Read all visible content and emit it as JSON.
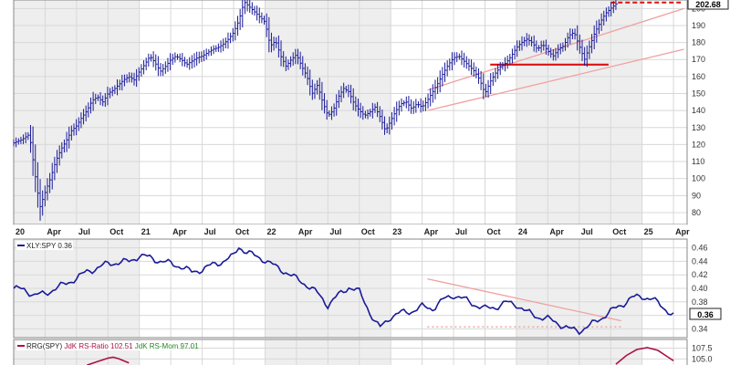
{
  "colors": {
    "price": "#1a1a99",
    "ratio": "#1a1a99",
    "trend": "#f0a0a0",
    "support": "#dd1111",
    "rrg_ratio": "#aa1144",
    "rrg_mom": "#228822",
    "band_shade": "#eeeeee",
    "grid": "#d8d8d8"
  },
  "chart_data": [
    {
      "type": "line",
      "panel": "price",
      "style": "ohlc-bars",
      "ylim": [
        73,
        205
      ],
      "yticks": [
        80,
        90,
        100,
        110,
        120,
        130,
        140,
        150,
        160,
        170,
        180,
        190,
        200
      ],
      "last_value_label": "202.68",
      "x_tick_labels": [
        "20",
        "Apr",
        "Jul",
        "Oct",
        "21",
        "Apr",
        "Jul",
        "Oct",
        "22",
        "Apr",
        "Jul",
        "Oct",
        "23",
        "Apr",
        "Jul",
        "Oct",
        "24",
        "Apr",
        "Jul",
        "Oct",
        "25",
        "Apr"
      ],
      "x_tick_months": [
        0,
        3,
        6,
        9,
        12,
        15,
        18,
        21,
        24,
        27,
        30,
        33,
        36,
        39,
        42,
        45,
        48,
        51,
        54,
        57,
        60,
        63
      ],
      "xlim_months": [
        0,
        64.3
      ],
      "series_points": [
        [
          0,
          121
        ],
        [
          0.8,
          123
        ],
        [
          1.5,
          126
        ],
        [
          2,
          104
        ],
        [
          2.5,
          83
        ],
        [
          3,
          92
        ],
        [
          3.5,
          100
        ],
        [
          4,
          110
        ],
        [
          4.5,
          117
        ],
        [
          5,
          122
        ],
        [
          5.5,
          128
        ],
        [
          6,
          131
        ],
        [
          6.5,
          136
        ],
        [
          7,
          140
        ],
        [
          7.5,
          146
        ],
        [
          8,
          148
        ],
        [
          8.5,
          145
        ],
        [
          9,
          150
        ],
        [
          9.5,
          152
        ],
        [
          10,
          155
        ],
        [
          10.5,
          158
        ],
        [
          11,
          160
        ],
        [
          11.5,
          158
        ],
        [
          12,
          163
        ],
        [
          12.5,
          167
        ],
        [
          13,
          172
        ],
        [
          13.5,
          168
        ],
        [
          14,
          163
        ],
        [
          14.5,
          166
        ],
        [
          15,
          170
        ],
        [
          15.5,
          172
        ],
        [
          16,
          170
        ],
        [
          16.5,
          167
        ],
        [
          17,
          169
        ],
        [
          17.5,
          171
        ],
        [
          18,
          172
        ],
        [
          18.5,
          174
        ],
        [
          19,
          176
        ],
        [
          19.5,
          177
        ],
        [
          20,
          179
        ],
        [
          20.5,
          182
        ],
        [
          21,
          186
        ],
        [
          21.5,
          193
        ],
        [
          22,
          204
        ],
        [
          22.5,
          201
        ],
        [
          23,
          198
        ],
        [
          23.5,
          195
        ],
        [
          24,
          192
        ],
        [
          24.5,
          178
        ],
        [
          25,
          181
        ],
        [
          25.5,
          172
        ],
        [
          26,
          166
        ],
        [
          26.5,
          170
        ],
        [
          27,
          173
        ],
        [
          27.5,
          166
        ],
        [
          28,
          160
        ],
        [
          28.5,
          150
        ],
        [
          29,
          155
        ],
        [
          29.5,
          145
        ],
        [
          30,
          137
        ],
        [
          30.5,
          140
        ],
        [
          31,
          148
        ],
        [
          31.5,
          153
        ],
        [
          32,
          151
        ],
        [
          32.5,
          144
        ],
        [
          33,
          140
        ],
        [
          33.5,
          137
        ],
        [
          34,
          139
        ],
        [
          34.5,
          142
        ],
        [
          35,
          136
        ],
        [
          35.5,
          128
        ],
        [
          36,
          134
        ],
        [
          36.5,
          140
        ],
        [
          37,
          144
        ],
        [
          37.5,
          145
        ],
        [
          38,
          141
        ],
        [
          38.5,
          144
        ],
        [
          39,
          142
        ],
        [
          39.5,
          146
        ],
        [
          40,
          151
        ],
        [
          40.5,
          156
        ],
        [
          41,
          162
        ],
        [
          41.5,
          167
        ],
        [
          42,
          171
        ],
        [
          42.5,
          172
        ],
        [
          43,
          169
        ],
        [
          43.5,
          166
        ],
        [
          44,
          163
        ],
        [
          44.5,
          158
        ],
        [
          45,
          150
        ],
        [
          45.5,
          157
        ],
        [
          46,
          162
        ],
        [
          46.5,
          166
        ],
        [
          47,
          168
        ],
        [
          47.5,
          172
        ],
        [
          48,
          177
        ],
        [
          48.5,
          180
        ],
        [
          49,
          182
        ],
        [
          49.5,
          180
        ],
        [
          50,
          176
        ],
        [
          50.5,
          179
        ],
        [
          51,
          175
        ],
        [
          51.5,
          172
        ],
        [
          52,
          176
        ],
        [
          52.5,
          178
        ],
        [
          53,
          184
        ],
        [
          53.5,
          186
        ],
        [
          54,
          178
        ],
        [
          54.5,
          170
        ],
        [
          55,
          178
        ],
        [
          55.5,
          186
        ],
        [
          56,
          192
        ],
        [
          56.5,
          197
        ],
        [
          57,
          200
        ],
        [
          57.5,
          202.68
        ]
      ],
      "annotations": [
        {
          "kind": "upper-trend",
          "from": [
            39.5,
            152
          ],
          "to": [
            64,
            200
          ]
        },
        {
          "kind": "lower-trend",
          "from": [
            39.5,
            140
          ],
          "to": [
            64,
            176
          ]
        },
        {
          "kind": "support",
          "from": [
            45.5,
            167
          ],
          "to": [
            56.8,
            167
          ]
        },
        {
          "kind": "resistance",
          "from": [
            57,
            203.5
          ],
          "to": [
            63.7,
            203.5
          ]
        }
      ]
    },
    {
      "type": "line",
      "panel": "ratio",
      "legend": "XLY:SPY 0.36",
      "ylim": [
        0.327,
        0.473
      ],
      "yticks": [
        0.34,
        0.36,
        0.38,
        0.4,
        0.42,
        0.44,
        0.46
      ],
      "last_value_label": "0.36",
      "series_points": [
        [
          0,
          0.4
        ],
        [
          1,
          0.398
        ],
        [
          2,
          0.39
        ],
        [
          3,
          0.392
        ],
        [
          4,
          0.4
        ],
        [
          5,
          0.407
        ],
        [
          6,
          0.415
        ],
        [
          7,
          0.425
        ],
        [
          8,
          0.43
        ],
        [
          9,
          0.437
        ],
        [
          10,
          0.438
        ],
        [
          11,
          0.44
        ],
        [
          12,
          0.448
        ],
        [
          13,
          0.446
        ],
        [
          14,
          0.44
        ],
        [
          15,
          0.437
        ],
        [
          16,
          0.432
        ],
        [
          17,
          0.424
        ],
        [
          18,
          0.428
        ],
        [
          19,
          0.435
        ],
        [
          20,
          0.44
        ],
        [
          21,
          0.448
        ],
        [
          21.5,
          0.462
        ],
        [
          22,
          0.456
        ],
        [
          23,
          0.448
        ],
        [
          24,
          0.442
        ],
        [
          25,
          0.432
        ],
        [
          26,
          0.424
        ],
        [
          27,
          0.414
        ],
        [
          28,
          0.405
        ],
        [
          29,
          0.393
        ],
        [
          30,
          0.375
        ],
        [
          31,
          0.39
        ],
        [
          32,
          0.402
        ],
        [
          33,
          0.395
        ],
        [
          34,
          0.365
        ],
        [
          34.5,
          0.35
        ],
        [
          35,
          0.342
        ],
        [
          36,
          0.358
        ],
        [
          37,
          0.364
        ],
        [
          38,
          0.366
        ],
        [
          39,
          0.373
        ],
        [
          40,
          0.37
        ],
        [
          41,
          0.383
        ],
        [
          42,
          0.39
        ],
        [
          43,
          0.384
        ],
        [
          44,
          0.376
        ],
        [
          45,
          0.37
        ],
        [
          46,
          0.372
        ],
        [
          47,
          0.379
        ],
        [
          48,
          0.376
        ],
        [
          49,
          0.365
        ],
        [
          50,
          0.358
        ],
        [
          51,
          0.355
        ],
        [
          52,
          0.348
        ],
        [
          53,
          0.34
        ],
        [
          54,
          0.337
        ],
        [
          55,
          0.345
        ],
        [
          56,
          0.355
        ],
        [
          57,
          0.366
        ],
        [
          58,
          0.375
        ],
        [
          59,
          0.386
        ],
        [
          60,
          0.388
        ],
        [
          61,
          0.384
        ],
        [
          62,
          0.372
        ],
        [
          63,
          0.36
        ]
      ],
      "annotations": [
        {
          "kind": "down-trend",
          "from": [
            39.5,
            0.414
          ],
          "to": [
            58,
            0.352
          ]
        },
        {
          "kind": "dotted-support",
          "from": [
            39.5,
            0.343
          ],
          "to": [
            58,
            0.343
          ]
        }
      ]
    },
    {
      "type": "line",
      "panel": "rrg",
      "legend_prefix": "RRG(SPY)",
      "legend_ratio": "JdK RS-Ratio 102.51",
      "legend_mom": "JdK RS-Mom 97.01",
      "ylim": [
        103.2,
        109.5
      ],
      "yticks": [
        105.0,
        107.5
      ],
      "ytick_labels": [
        "105.0",
        "107.5"
      ],
      "series_points": [
        [
          7,
          103.6
        ],
        [
          8,
          104.4
        ],
        [
          9,
          105.2
        ],
        [
          9.5,
          105.4
        ],
        [
          10,
          105.1
        ],
        [
          11,
          104.1
        ],
        [
          57.5,
          103.8
        ],
        [
          58.5,
          105.8
        ],
        [
          59.5,
          107.2
        ],
        [
          60.5,
          107.6
        ],
        [
          61.5,
          107.0
        ],
        [
          62.5,
          105.4
        ],
        [
          63,
          104.6
        ]
      ]
    }
  ]
}
